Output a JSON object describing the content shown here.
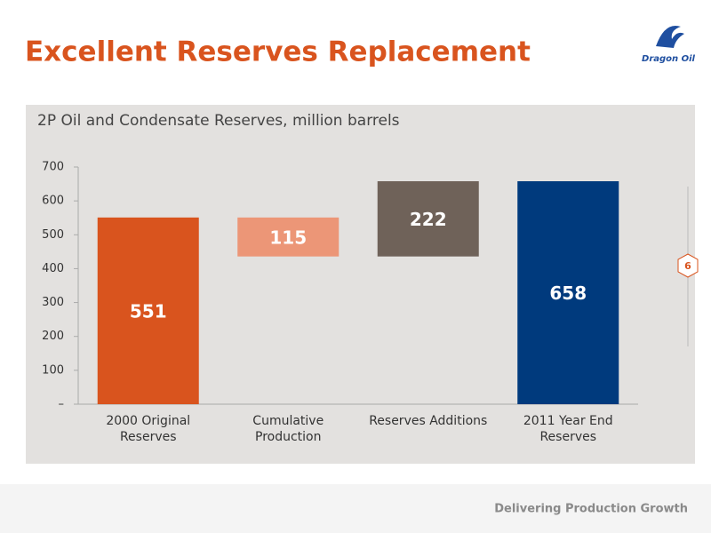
{
  "header": {
    "title": "Excellent Reserves Replacement",
    "logo_text": "Dragon Oil"
  },
  "page_number": "6",
  "footer": "Delivering Production Growth",
  "chart_data": {
    "type": "waterfall",
    "title": "2P Oil and Condensate Reserves, million barrels",
    "categories": [
      "2000 Original Reserves",
      "Cumulative Production",
      "Reserves Additions",
      "2011 Year End Reserves"
    ],
    "values": [
      551,
      115,
      222,
      658
    ],
    "measures": [
      "absolute",
      "decrease",
      "increase",
      "total"
    ],
    "colors": [
      "#d9541e",
      "#ec9677",
      "#6f6259",
      "#003a7d"
    ],
    "ylim": [
      0,
      700
    ],
    "yticks": [
      {
        "value": 0,
        "label": "–"
      },
      100,
      200,
      300,
      400,
      500,
      600,
      700
    ]
  }
}
